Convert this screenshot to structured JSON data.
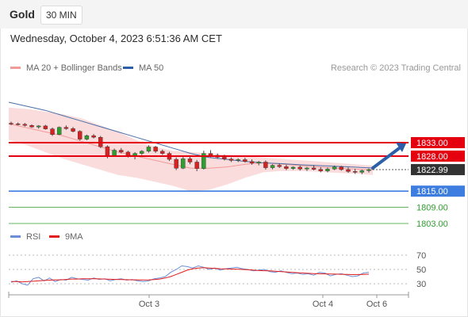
{
  "header": {
    "asset": "Gold",
    "timeframe": "30 MIN",
    "datetime": "Wednesday, October 4, 2023 6:51:36 AM CET"
  },
  "legend": {
    "ma20_bb": "MA 20 + Bollinger Bands",
    "ma50": "MA 50",
    "copyright": "Research © 2023 Trading Central"
  },
  "rsi_legend": {
    "rsi": "RSI",
    "ma9": "9MA"
  },
  "colors": {
    "resistance": "#e5000f",
    "support_key": "#3d7de0",
    "support_other": "#2e9e2e",
    "bollinger_fill": "#fbdcdc",
    "ma20": "#f29a9a",
    "ma50": "#4a6fa8",
    "candle_up": "#2e9e2e",
    "candle_down": "#d62222",
    "rsi": "#6a8ed8",
    "rsi_ma": "#e31b1b",
    "current_price_bg": "#333333"
  },
  "chart_data": [
    {
      "type": "candlestick",
      "title": "Gold",
      "timeframe": "30 MIN",
      "x_ticks": [
        "Oct 3",
        "Oct 4",
        "Oct 6"
      ],
      "ylim": [
        1800,
        1850
      ],
      "current_price": "1822.99",
      "levels": [
        {
          "label": "1833.00",
          "value": 1833.0,
          "kind": "resistance"
        },
        {
          "label": "1828.00",
          "value": 1828.0,
          "kind": "resistance"
        },
        {
          "label": "1815.00",
          "value": 1815.0,
          "kind": "support_key"
        },
        {
          "label": "1809.00",
          "value": 1809.0,
          "kind": "support"
        },
        {
          "label": "1803.00",
          "value": 1803.0,
          "kind": "support"
        }
      ],
      "series": [
        {
          "name": "MA 20 + Bollinger Bands",
          "upper": [
            1846,
            1845.5,
            1844.5,
            1843.5,
            1842,
            1839.5,
            1837,
            1834,
            1831.5,
            1830,
            1829.5,
            1829,
            1828.5,
            1828,
            1827.5,
            1827,
            1826.5,
            1826,
            1825.5,
            1825,
            1824.5
          ],
          "middle": [
            1840,
            1838.5,
            1837,
            1835.5,
            1833.5,
            1831.5,
            1829.5,
            1828,
            1826.5,
            1825,
            1823.5,
            1823.5,
            1824,
            1825,
            1825.5,
            1825,
            1824.5,
            1824,
            1823.5,
            1823.2,
            1822.9
          ],
          "lower": [
            1834,
            1832,
            1829.5,
            1827,
            1825,
            1823,
            1821,
            1820,
            1818.5,
            1817,
            1815,
            1815.5,
            1817.5,
            1820,
            1822,
            1822.5,
            1822.5,
            1822.2,
            1821.8,
            1821.5,
            1821
          ]
        },
        {
          "name": "MA 50",
          "values": [
            1848,
            1846.5,
            1845,
            1843,
            1841,
            1839,
            1837,
            1835,
            1833,
            1831,
            1829,
            1827.5,
            1826.8,
            1826,
            1825.5,
            1825.2,
            1824.8,
            1824.5,
            1824.2,
            1823.9,
            1823.6
          ]
        },
        {
          "name": "Price",
          "ohlc": [
            [
              1840.2,
              1840.8,
              1839.5,
              1840.0
            ],
            [
              1840.0,
              1840.5,
              1839.4,
              1839.8
            ],
            [
              1839.8,
              1840.3,
              1839.0,
              1839.4
            ],
            [
              1839.4,
              1839.8,
              1838.5,
              1838.8
            ],
            [
              1838.8,
              1839.5,
              1838.2,
              1839.2
            ],
            [
              1839.2,
              1839.6,
              1837.8,
              1838.1
            ],
            [
              1838.1,
              1838.6,
              1835.5,
              1836.0
            ],
            [
              1836.0,
              1839.0,
              1835.8,
              1838.7
            ],
            [
              1838.7,
              1839.4,
              1837.8,
              1838.2
            ],
            [
              1838.2,
              1838.8,
              1836.8,
              1837.2
            ],
            [
              1837.2,
              1837.6,
              1833.8,
              1834.3
            ],
            [
              1834.3,
              1836.0,
              1833.9,
              1835.6
            ],
            [
              1835.6,
              1836.2,
              1834.6,
              1835.0
            ],
            [
              1835.0,
              1835.5,
              1831.0,
              1831.5
            ],
            [
              1831.5,
              1832.0,
              1827.2,
              1828.1
            ],
            [
              1828.1,
              1830.8,
              1827.8,
              1830.2
            ],
            [
              1830.2,
              1831.0,
              1829.0,
              1829.5
            ],
            [
              1829.5,
              1830.0,
              1827.5,
              1828.2
            ],
            [
              1828.2,
              1829.5,
              1826.8,
              1829.0
            ],
            [
              1829.0,
              1830.2,
              1828.4,
              1829.8
            ],
            [
              1829.8,
              1832.0,
              1829.3,
              1831.4
            ],
            [
              1831.4,
              1831.8,
              1829.2,
              1829.8
            ],
            [
              1829.8,
              1830.4,
              1828.5,
              1829.0
            ],
            [
              1829.0,
              1829.6,
              1826.2,
              1826.8
            ],
            [
              1826.8,
              1827.5,
              1822.8,
              1823.5
            ],
            [
              1823.5,
              1827.8,
              1823.2,
              1827.0
            ],
            [
              1827.0,
              1827.9,
              1825.0,
              1825.8
            ],
            [
              1825.8,
              1826.6,
              1822.4,
              1823.4
            ],
            [
              1823.4,
              1830.0,
              1823.0,
              1829.0
            ],
            [
              1829.0,
              1830.2,
              1827.6,
              1828.3
            ],
            [
              1828.3,
              1829.0,
              1827.0,
              1827.6
            ],
            [
              1827.6,
              1828.5,
              1826.4,
              1826.9
            ],
            [
              1826.9,
              1827.5,
              1825.8,
              1826.4
            ],
            [
              1826.4,
              1827.2,
              1825.8,
              1826.7
            ],
            [
              1826.7,
              1827.4,
              1825.6,
              1826.0
            ],
            [
              1826.0,
              1826.8,
              1824.8,
              1825.4
            ],
            [
              1825.4,
              1826.2,
              1824.6,
              1825.8
            ],
            [
              1825.8,
              1826.4,
              1823.0,
              1823.7
            ],
            [
              1823.7,
              1825.0,
              1823.1,
              1824.6
            ],
            [
              1824.6,
              1825.3,
              1823.6,
              1824.1
            ],
            [
              1824.1,
              1824.8,
              1822.8,
              1823.4
            ],
            [
              1823.4,
              1824.2,
              1822.9,
              1823.9
            ],
            [
              1823.9,
              1824.5,
              1822.6,
              1823.2
            ],
            [
              1823.2,
              1824.0,
              1822.5,
              1823.6
            ],
            [
              1823.6,
              1824.6,
              1822.7,
              1823.1
            ],
            [
              1823.1,
              1823.9,
              1822.0,
              1822.5
            ],
            [
              1822.5,
              1823.8,
              1822.0,
              1823.2
            ],
            [
              1823.2,
              1824.5,
              1822.8,
              1824.0
            ],
            [
              1824.0,
              1824.4,
              1822.6,
              1823.0
            ],
            [
              1823.0,
              1823.8,
              1821.8,
              1822.3
            ],
            [
              1822.3,
              1823.3,
              1821.4,
              1822.0
            ],
            [
              1822.0,
              1823.0,
              1821.3,
              1822.6
            ],
            [
              1822.6,
              1823.4,
              1821.9,
              1822.99
            ]
          ]
        }
      ]
    },
    {
      "type": "line",
      "title": "RSI",
      "x_ticks": [
        "Oct 3",
        "Oct 4",
        "Oct 6"
      ],
      "y_ticks": [
        30,
        50,
        70
      ],
      "ylim": [
        20,
        80
      ],
      "series": [
        {
          "name": "RSI",
          "values": [
            32,
            34,
            30,
            28,
            37,
            39,
            34,
            38,
            33,
            36,
            35,
            39,
            37,
            36,
            35,
            38,
            36,
            37,
            34,
            36,
            37,
            35,
            36,
            34,
            33,
            34,
            37,
            38,
            40,
            46,
            50,
            55,
            54,
            52,
            55,
            53,
            50,
            52,
            49,
            51,
            52,
            53,
            51,
            50,
            48,
            49,
            50,
            47,
            46,
            48,
            46,
            44,
            45,
            43,
            44,
            42,
            46,
            45,
            41,
            43,
            44,
            42,
            40,
            41,
            45,
            46
          ]
        },
        {
          "name": "9MA",
          "values": [
            33,
            33,
            32.5,
            33,
            33.5,
            34,
            34.5,
            35,
            35.5,
            35.5,
            36,
            36.5,
            36.5,
            37,
            37,
            37,
            36.8,
            36.5,
            36.2,
            36,
            35.8,
            35.7,
            35.5,
            35.4,
            35.3,
            35.4,
            35.8,
            36.5,
            38,
            40,
            43,
            46,
            49,
            51,
            52,
            52.5,
            52,
            51.5,
            51,
            50.8,
            50.6,
            50.4,
            50,
            49.5,
            49,
            48.5,
            48.2,
            48,
            47.5,
            47,
            46.5,
            46,
            45.5,
            45,
            44.5,
            44.2,
            44,
            43.8,
            43.6,
            43.4,
            43.2,
            43,
            42.8,
            42.9,
            43.1,
            43.3
          ]
        }
      ]
    }
  ]
}
